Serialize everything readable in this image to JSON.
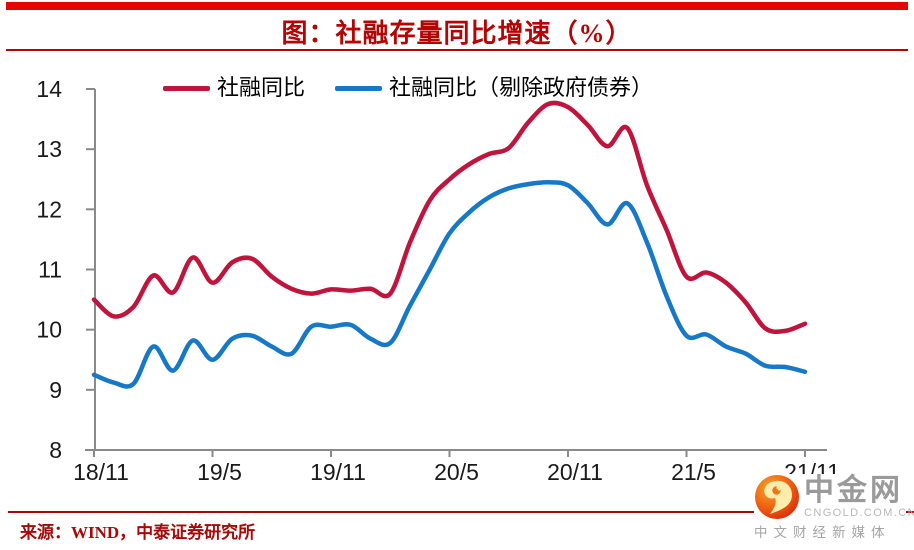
{
  "page": {
    "title": "图：社融存量同比增速（%）",
    "source": "来源：WIND，中泰证券研究所"
  },
  "legend": {
    "series1_label": "社融同比",
    "series2_label": "社融同比（剔除政府债券）"
  },
  "logo": {
    "name": "中金网",
    "domain": "CNGOLD.COM.CN",
    "tagline": "中文财经新媒体"
  },
  "colors": {
    "top_bar": "#e60505",
    "title_red": "#b40404",
    "source_red": "#a80808",
    "axis_gray": "#8a8a8a",
    "tick_text": "#1a1a1a"
  },
  "chart_data": {
    "type": "line",
    "title": "图：社融存量同比增速（%）",
    "unit": "%",
    "grid": false,
    "legend_position": "top",
    "ylim": [
      8,
      14
    ],
    "yticks": [
      8,
      9,
      10,
      11,
      12,
      13,
      14
    ],
    "xtick_labels": [
      "18/11",
      "19/5",
      "19/11",
      "20/5",
      "20/11",
      "21/5",
      "21/11"
    ],
    "x": [
      "18/11",
      "18/12",
      "19/1",
      "19/2",
      "19/3",
      "19/4",
      "19/5",
      "19/6",
      "19/7",
      "19/8",
      "19/9",
      "19/10",
      "19/11",
      "19/12",
      "20/1",
      "20/2",
      "20/3",
      "20/4",
      "20/5",
      "20/6",
      "20/7",
      "20/8",
      "20/9",
      "20/10",
      "20/11",
      "20/12",
      "21/1",
      "21/2",
      "21/3",
      "21/4",
      "21/5",
      "21/6",
      "21/7",
      "21/8",
      "21/9",
      "21/10",
      "21/11"
    ],
    "series": [
      {
        "name": "社融同比",
        "color": "#c0143c",
        "values": [
          10.5,
          10.22,
          10.38,
          10.9,
          10.62,
          11.2,
          10.78,
          11.12,
          11.18,
          10.88,
          10.68,
          10.6,
          10.67,
          10.65,
          10.68,
          10.6,
          11.45,
          12.15,
          12.5,
          12.75,
          12.92,
          13.02,
          13.45,
          13.75,
          13.7,
          13.4,
          13.05,
          13.35,
          12.4,
          11.65,
          10.88,
          10.95,
          10.78,
          10.45,
          10.02,
          9.98,
          10.1
        ]
      },
      {
        "name": "社融同比（剔除政府债券）",
        "color": "#1878c8",
        "values": [
          9.25,
          9.12,
          9.1,
          9.72,
          9.32,
          9.82,
          9.5,
          9.85,
          9.9,
          9.72,
          9.6,
          10.05,
          10.05,
          10.08,
          9.85,
          9.78,
          10.4,
          11.0,
          11.6,
          11.95,
          12.2,
          12.35,
          12.42,
          12.45,
          12.4,
          12.1,
          11.75,
          12.1,
          11.45,
          10.55,
          9.9,
          9.92,
          9.72,
          9.6,
          9.4,
          9.38,
          9.3
        ]
      }
    ]
  }
}
